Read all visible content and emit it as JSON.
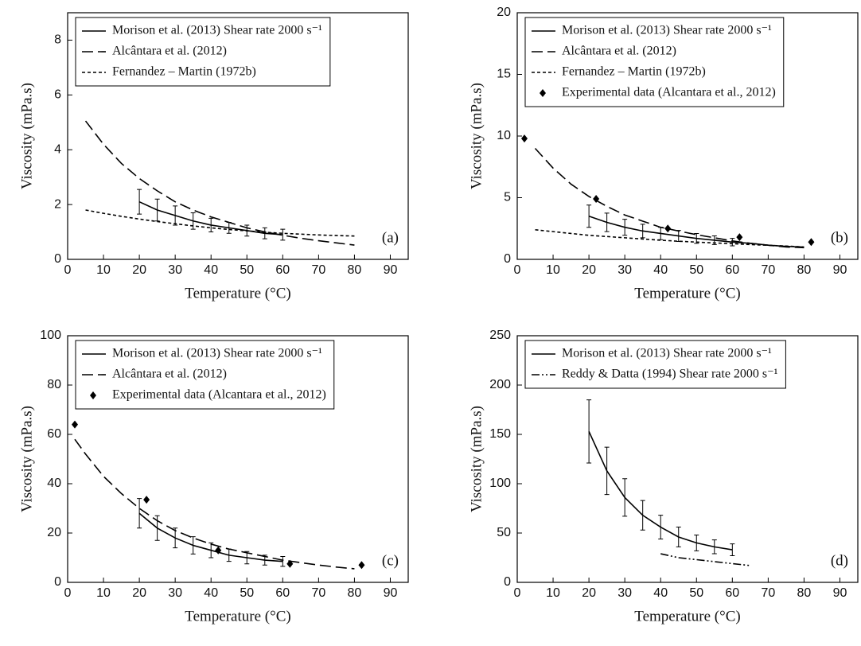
{
  "chart_data": [
    {
      "type": "line",
      "x_label": "Temperature (°C)",
      "y_label": "Viscosity (mPa.s)",
      "annotation": "(a)",
      "xlim": [
        0,
        95
      ],
      "xticks": [
        0,
        10,
        20,
        30,
        40,
        50,
        60,
        70,
        80,
        90
      ],
      "ylim": [
        0,
        9
      ],
      "yticks": [
        0,
        2,
        4,
        6,
        8
      ],
      "series": [
        {
          "name": "Morison et al. (2013) Shear rate 2000 s⁻¹",
          "color": "#000",
          "style": "solid",
          "x": [
            20,
            25,
            30,
            35,
            40,
            45,
            50,
            55,
            60
          ],
          "values": [
            2.1,
            1.8,
            1.6,
            1.4,
            1.25,
            1.15,
            1.05,
            0.95,
            0.9
          ],
          "errors": [
            0.45,
            0.4,
            0.35,
            0.3,
            0.25,
            0.2,
            0.2,
            0.2,
            0.2
          ]
        },
        {
          "name": "Alcântara et al. (2012)",
          "color": "#000",
          "style": "dashed",
          "x": [
            5,
            10,
            15,
            20,
            25,
            30,
            35,
            40,
            45,
            50,
            55,
            60,
            65,
            70,
            75,
            80
          ],
          "values": [
            5.05,
            4.2,
            3.5,
            2.95,
            2.5,
            2.1,
            1.8,
            1.55,
            1.35,
            1.15,
            1.0,
            0.88,
            0.77,
            0.68,
            0.6,
            0.52
          ]
        },
        {
          "name": "Fernandez – Martin (1972b)",
          "color": "#000",
          "style": "dotted",
          "x": [
            5,
            10,
            15,
            20,
            25,
            30,
            35,
            40,
            45,
            50,
            55,
            60,
            65,
            70,
            75,
            80
          ],
          "values": [
            1.8,
            1.68,
            1.57,
            1.47,
            1.38,
            1.3,
            1.22,
            1.15,
            1.09,
            1.04,
            0.99,
            0.95,
            0.92,
            0.89,
            0.87,
            0.85
          ]
        }
      ]
    },
    {
      "type": "line",
      "x_label": "Temperature (°C)",
      "y_label": "Viscosity (mPa.s)",
      "annotation": "(b)",
      "xlim": [
        0,
        95
      ],
      "xticks": [
        0,
        10,
        20,
        30,
        40,
        50,
        60,
        70,
        80,
        90
      ],
      "ylim": [
        0,
        20
      ],
      "yticks": [
        0,
        5,
        10,
        15,
        20
      ],
      "series": [
        {
          "name": "Morison et al. (2013) Shear rate 2000 s⁻¹",
          "color": "#000",
          "style": "solid",
          "x": [
            20,
            25,
            30,
            35,
            40,
            45,
            50,
            55,
            60,
            65,
            70,
            75,
            80
          ],
          "values": [
            3.5,
            3.0,
            2.6,
            2.3,
            2.1,
            1.9,
            1.7,
            1.55,
            1.4,
            1.3,
            1.15,
            1.05,
            1.0
          ],
          "errors": [
            0.9,
            0.75,
            0.65,
            0.55,
            0.5,
            0.45,
            0.4,
            0.35,
            0.3,
            null,
            null,
            null,
            null
          ]
        },
        {
          "name": "Alcântara et al. (2012)",
          "color": "#000",
          "style": "dashed",
          "x": [
            5,
            10,
            15,
            20,
            25,
            30,
            35,
            40,
            45,
            50,
            55,
            60,
            65,
            70,
            75,
            80
          ],
          "values": [
            9.0,
            7.4,
            6.1,
            5.1,
            4.3,
            3.6,
            3.1,
            2.6,
            2.3,
            2.0,
            1.75,
            1.5,
            1.3,
            1.15,
            1.0,
            0.95
          ]
        },
        {
          "name": "Fernandez – Martin (1972b)",
          "color": "#000",
          "style": "dotted",
          "x": [
            5,
            10,
            15,
            20,
            25,
            30,
            35,
            40,
            45,
            50,
            55,
            60,
            65,
            70,
            75,
            80
          ],
          "values": [
            2.4,
            2.25,
            2.1,
            1.95,
            1.85,
            1.75,
            1.65,
            1.55,
            1.47,
            1.4,
            1.33,
            1.27,
            1.2,
            1.14,
            1.08,
            1.0
          ]
        },
        {
          "name": "Experimental data (Alcantara et al., 2012)",
          "color": "#000",
          "style": "points",
          "x": [
            2,
            22,
            42,
            62,
            82
          ],
          "values": [
            9.8,
            4.9,
            2.5,
            1.8,
            1.4
          ]
        }
      ]
    },
    {
      "type": "line",
      "x_label": "Temperature (°C)",
      "y_label": "Viscosity (mPa.s)",
      "annotation": "(c)",
      "xlim": [
        0,
        95
      ],
      "xticks": [
        0,
        10,
        20,
        30,
        40,
        50,
        60,
        70,
        80,
        90
      ],
      "ylim": [
        0,
        100
      ],
      "yticks": [
        0,
        20,
        40,
        60,
        80,
        100
      ],
      "series": [
        {
          "name": "Morison et al. (2013) Shear rate 2000 s⁻¹",
          "color": "#000",
          "style": "solid",
          "x": [
            20,
            25,
            30,
            35,
            40,
            45,
            50,
            55,
            60
          ],
          "values": [
            28,
            22,
            18,
            15,
            13,
            11,
            10,
            9,
            8.5
          ],
          "errors": [
            6,
            5,
            4,
            3.5,
            3,
            2.5,
            2.5,
            2,
            2
          ]
        },
        {
          "name": "Alcântara et al. (2012)",
          "color": "#000",
          "style": "dashed",
          "x": [
            2,
            5,
            10,
            15,
            20,
            25,
            30,
            35,
            40,
            45,
            50,
            55,
            60,
            65,
            70,
            75,
            80
          ],
          "values": [
            58,
            52,
            43,
            36,
            30,
            25,
            21,
            18,
            15.5,
            13.5,
            12,
            10.5,
            9,
            8,
            7,
            6.2,
            5.5
          ]
        },
        {
          "name": "Experimental data (Alcantara et al., 2012)",
          "color": "#000",
          "style": "points",
          "x": [
            2,
            22,
            42,
            62,
            82
          ],
          "values": [
            64,
            33.5,
            13,
            7.5,
            7
          ]
        }
      ]
    },
    {
      "type": "line",
      "x_label": "Temperature (°C)",
      "y_label": "Viscosity (mPa.s)",
      "annotation": "(d)",
      "xlim": [
        0,
        95
      ],
      "xticks": [
        0,
        10,
        20,
        30,
        40,
        50,
        60,
        70,
        80,
        90
      ],
      "ylim": [
        0,
        250
      ],
      "yticks": [
        0,
        50,
        100,
        150,
        200,
        250
      ],
      "series": [
        {
          "name": "Morison et al. (2013) Shear rate 2000 s⁻¹",
          "color": "#000",
          "style": "solid",
          "x": [
            20,
            25,
            30,
            35,
            40,
            45,
            50,
            55,
            60
          ],
          "values": [
            153,
            113,
            86,
            68,
            56,
            46,
            40,
            36,
            33
          ],
          "errors": [
            32,
            24,
            19,
            15,
            12,
            10,
            8,
            7,
            6
          ]
        },
        {
          "name": "Reddy & Datta (1994) Shear rate 2000 s⁻¹",
          "color": "#000",
          "style": "dashdot",
          "x": [
            40,
            45,
            50,
            55,
            60,
            65
          ],
          "values": [
            29,
            25,
            23,
            21,
            19,
            17
          ]
        }
      ]
    }
  ]
}
